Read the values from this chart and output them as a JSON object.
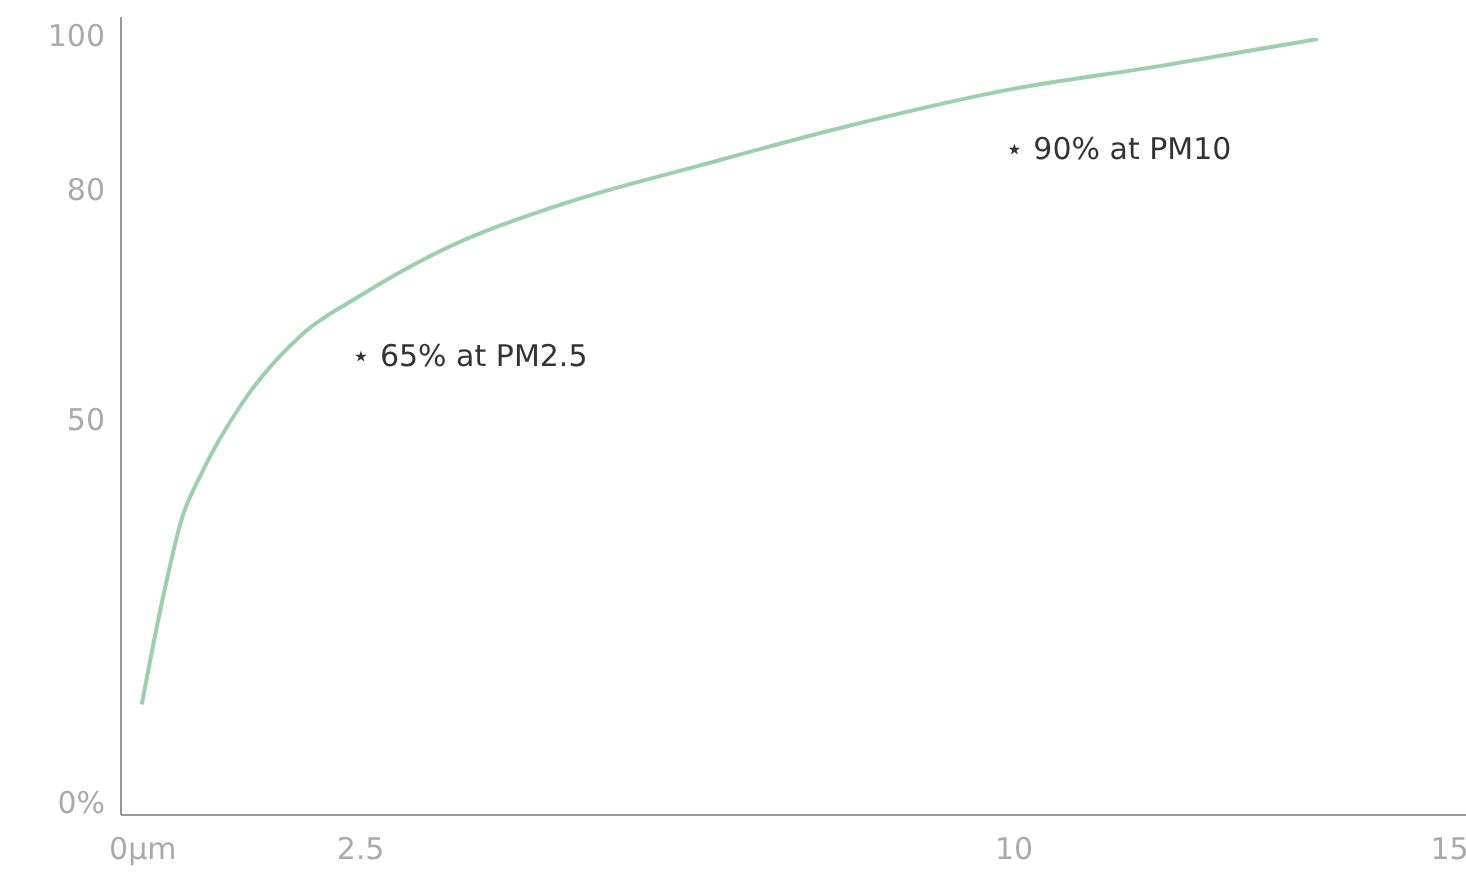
{
  "chart_data": {
    "type": "line",
    "x": [
      0,
      0.23,
      0.46,
      0.69,
      1.15,
      1.84,
      2.5,
      3.45,
      4.83,
      6.4,
      8.05,
      10,
      11.7,
      13.5
    ],
    "series": [
      {
        "color": "#9ccfae",
        "values": [
          12.8,
          26,
          37,
          43,
          52,
          61,
          66,
          72,
          78,
          83,
          88,
          93,
          96,
          99.5
        ]
      }
    ],
    "xlim": [
      -0.25,
      15.2
    ],
    "ylim": [
      -1.5,
      102.5
    ],
    "xticks": [
      {
        "value": 0,
        "label": "0µm"
      },
      2.5,
      10,
      15
    ],
    "yticks": [
      {
        "value": 0,
        "label": "0%"
      },
      50,
      80,
      100
    ],
    "annotations": [
      {
        "text": "⋆ 65% at PM2.5",
        "x": 2.5,
        "y": 66
      },
      {
        "text": "⋆ 90% at PM10",
        "x": 10,
        "y": 93
      }
    ],
    "grid": false,
    "marker": "none",
    "line_style": "solid"
  }
}
